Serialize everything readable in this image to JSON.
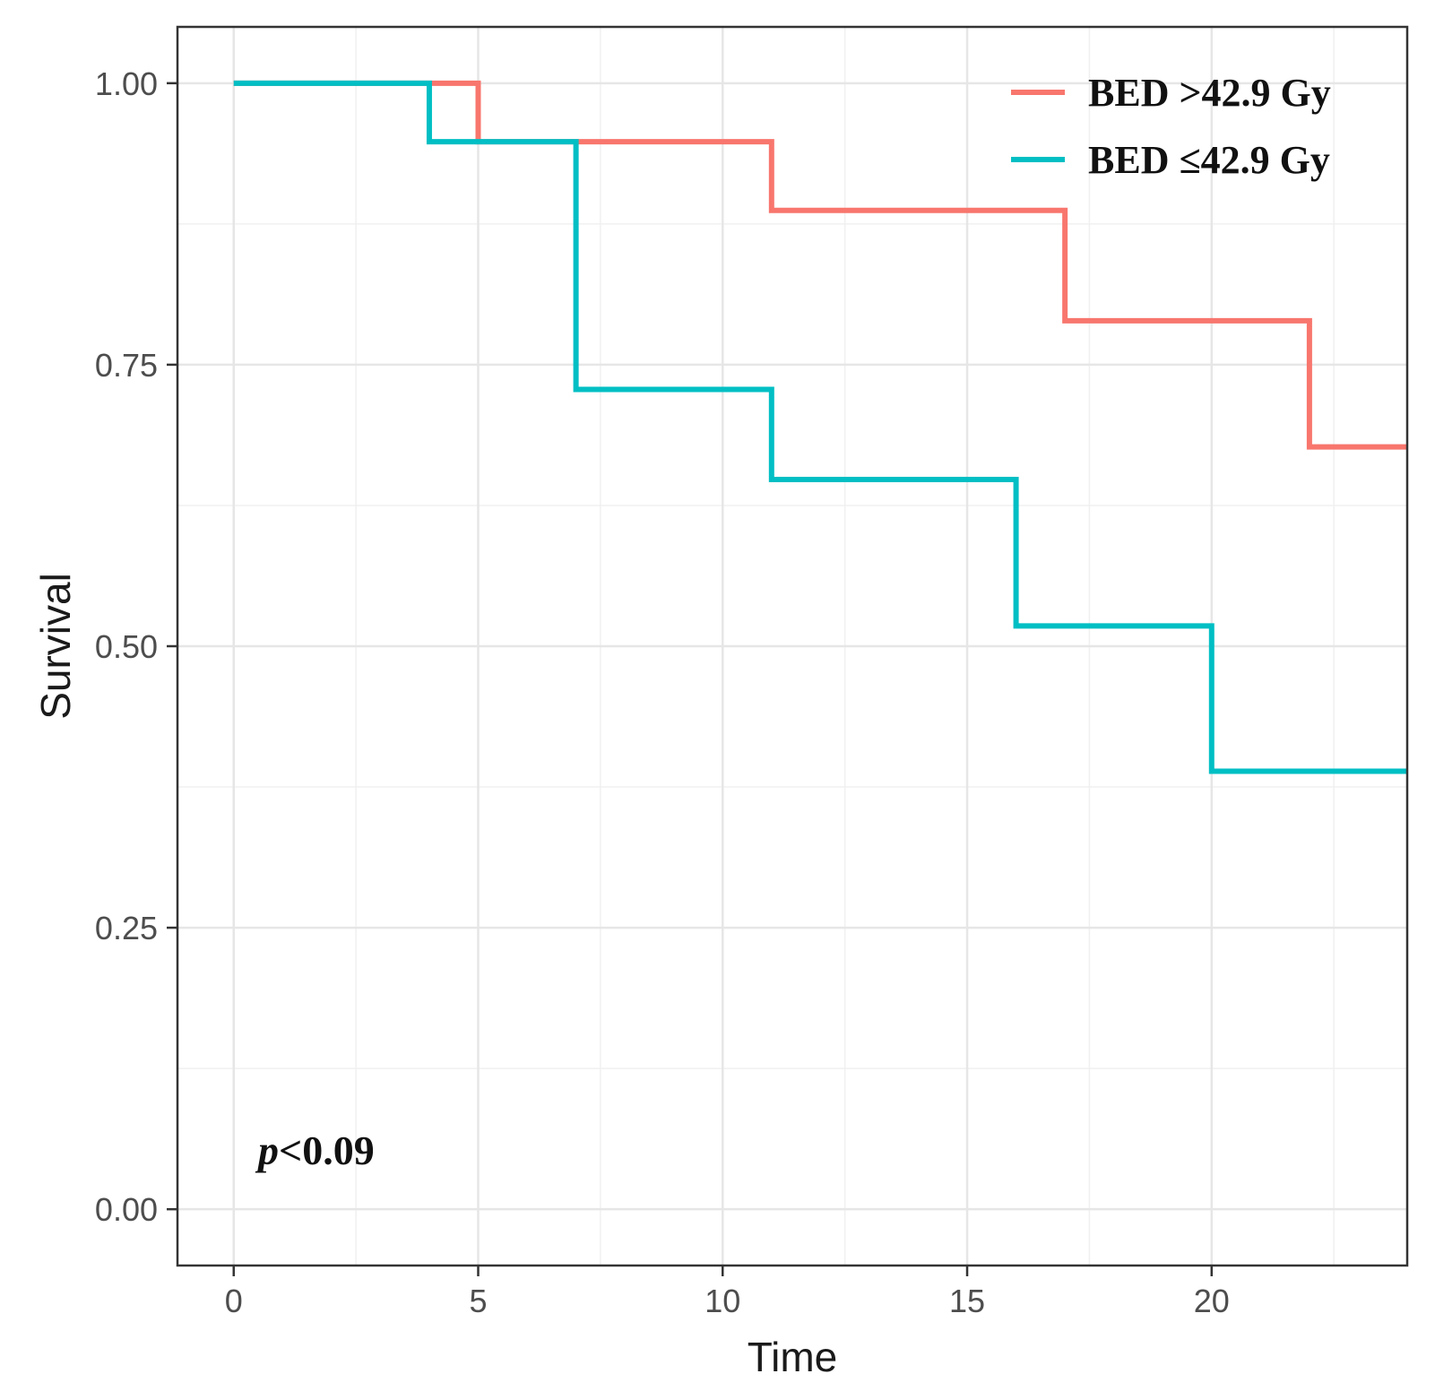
{
  "chart_data": {
    "type": "line",
    "subtype": "kaplan-meier-step",
    "title": "",
    "xlabel": "Time",
    "ylabel": "Survival",
    "xlim": [
      -1.15,
      24
    ],
    "ylim": [
      -0.05,
      1.05
    ],
    "x_ticks": [
      0,
      5,
      10,
      15,
      20
    ],
    "x_tick_labels": [
      "0",
      "5",
      "10",
      "15",
      "20"
    ],
    "y_ticks": [
      0,
      0.25,
      0.5,
      0.75,
      1.0
    ],
    "y_tick_labels": [
      "0.00",
      "0.25",
      "0.50",
      "0.75",
      "1.00"
    ],
    "grid": true,
    "legend_position": "top-right",
    "series": [
      {
        "name": "BED >42.9 Gy",
        "color": "#F8766D",
        "x": [
          0,
          5,
          11,
          17,
          22,
          24
        ],
        "y": [
          1.0,
          0.948,
          0.887,
          0.789,
          0.677,
          0.677
        ]
      },
      {
        "name": "BED ≤42.9 Gy",
        "color": "#00BFC4",
        "x": [
          0,
          4,
          7,
          11,
          16,
          20,
          24
        ],
        "y": [
          1.0,
          0.948,
          0.728,
          0.648,
          0.518,
          0.389,
          0.389
        ]
      }
    ],
    "annotation": {
      "italic": "p",
      "rest": "<0.09",
      "x": 0.5,
      "y": 0.04
    }
  }
}
